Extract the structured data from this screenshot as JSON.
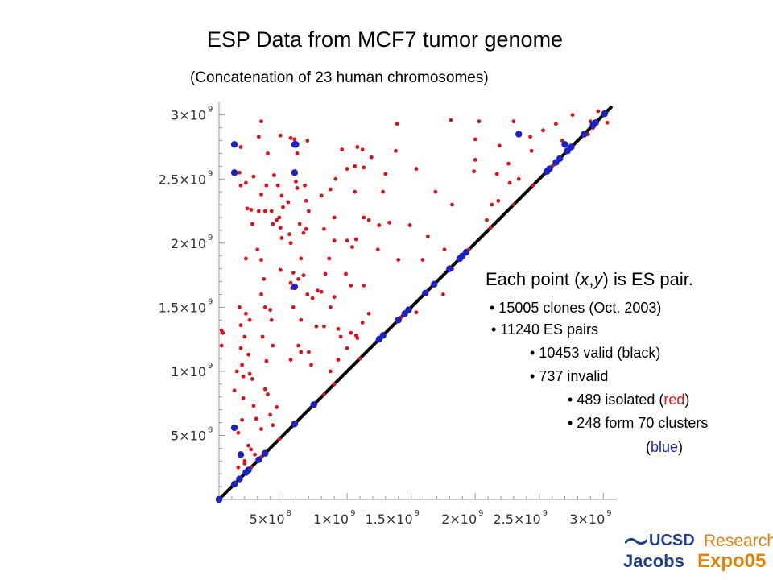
{
  "title": "ESP Data from MCF7 tumor genome",
  "subtitle": "(Concatenation of 23 human chromosomes)",
  "info": {
    "head_prefix": "Each point (",
    "head_x": "x",
    "head_comma": ",",
    "head_y": "y",
    "head_suffix": ") is ES pair.",
    "line1": "• 15005 clones (Oct. 2003)",
    "line2": "• 11240 ES pairs",
    "line3": "• 10453 valid (black)",
    "line4": "• 737 invalid",
    "line5_a": "• 489 isolated (",
    "line5_b": "red",
    "line5_c": ")",
    "line6": "• 248 form 70 clusters",
    "line7_a": "(",
    "line7_b": "blue",
    "line7_c": ")"
  },
  "logo": {
    "ucsd": "UCSD",
    "research": "Research",
    "jacobs": "Jacobs",
    "expo": "Expo05"
  },
  "colors": {
    "valid": "#000000",
    "isolated": "#e0101a",
    "cluster": "#1a22c8",
    "axis": "#999999"
  },
  "chart_data": {
    "type": "scatter",
    "x_ticks": [
      {
        "value": 500000000,
        "mantissa": "5×10",
        "exp": "8"
      },
      {
        "value": 1000000000,
        "mantissa": "1×10",
        "exp": "9"
      },
      {
        "value": 1500000000,
        "mantissa": "1.5×10",
        "exp": "9"
      },
      {
        "value": 2000000000,
        "mantissa": "2×10",
        "exp": "9"
      },
      {
        "value": 2500000000,
        "mantissa": "2.5×10",
        "exp": "9"
      },
      {
        "value": 3000000000,
        "mantissa": "3×10",
        "exp": "9"
      }
    ],
    "y_ticks": [
      {
        "value": 500000000,
        "mantissa": "5×10",
        "exp": "8"
      },
      {
        "value": 1000000000,
        "mantissa": "1×10",
        "exp": "9"
      },
      {
        "value": 1500000000,
        "mantissa": "1.5×10",
        "exp": "9"
      },
      {
        "value": 2000000000,
        "mantissa": "2×10",
        "exp": "9"
      },
      {
        "value": 2500000000,
        "mantissa": "2.5×10",
        "exp": "9"
      },
      {
        "value": 3000000000,
        "mantissa": "3×10",
        "exp": "9"
      }
    ],
    "xlim": [
      0,
      3080000000
    ],
    "ylim": [
      0,
      3080000000
    ],
    "valid_line": {
      "name": "valid (black)",
      "from": [
        0,
        0
      ],
      "to": [
        3060000000,
        3060000000
      ]
    },
    "series": [
      {
        "name": "isolated (red)",
        "points": [
          [
            20000000,
            1320000000
          ],
          [
            30000000,
            1300000000
          ],
          [
            20000000,
            1200000000
          ],
          [
            150000000,
            250000000
          ],
          [
            200000000,
            280000000
          ],
          [
            160000000,
            1500000000
          ],
          [
            180000000,
            1050000000
          ],
          [
            140000000,
            1000000000
          ],
          [
            120000000,
            850000000
          ],
          [
            180000000,
            620000000
          ],
          [
            150000000,
            520000000
          ],
          [
            230000000,
            420000000
          ],
          [
            200000000,
            300000000
          ],
          [
            170000000,
            2750000000
          ],
          [
            160000000,
            2550000000
          ],
          [
            170000000,
            2450000000
          ],
          [
            210000000,
            2470000000
          ],
          [
            220000000,
            2270000000
          ],
          [
            250000000,
            2260000000
          ],
          [
            260000000,
            2150000000
          ],
          [
            210000000,
            1880000000
          ],
          [
            200000000,
            1270000000
          ],
          [
            170000000,
            1180000000
          ],
          [
            210000000,
            1450000000
          ],
          [
            240000000,
            1400000000
          ],
          [
            170000000,
            1360000000
          ],
          [
            230000000,
            1130000000
          ],
          [
            190000000,
            960000000
          ],
          [
            240000000,
            980000000
          ],
          [
            260000000,
            940000000
          ],
          [
            190000000,
            790000000
          ],
          [
            270000000,
            730000000
          ],
          [
            290000000,
            630000000
          ],
          [
            250000000,
            390000000
          ],
          [
            280000000,
            350000000
          ],
          [
            270000000,
            2520000000
          ],
          [
            310000000,
            2830000000
          ],
          [
            330000000,
            2950000000
          ],
          [
            380000000,
            2700000000
          ],
          [
            370000000,
            2450000000
          ],
          [
            330000000,
            2380000000
          ],
          [
            310000000,
            2250000000
          ],
          [
            360000000,
            2250000000
          ],
          [
            410000000,
            2250000000
          ],
          [
            420000000,
            2150000000
          ],
          [
            300000000,
            1950000000
          ],
          [
            330000000,
            1870000000
          ],
          [
            350000000,
            1720000000
          ],
          [
            330000000,
            1600000000
          ],
          [
            360000000,
            1500000000
          ],
          [
            400000000,
            1480000000
          ],
          [
            410000000,
            1400000000
          ],
          [
            420000000,
            1200000000
          ],
          [
            340000000,
            1270000000
          ],
          [
            370000000,
            1080000000
          ],
          [
            360000000,
            860000000
          ],
          [
            380000000,
            820000000
          ],
          [
            400000000,
            660000000
          ],
          [
            330000000,
            550000000
          ],
          [
            420000000,
            580000000
          ],
          [
            430000000,
            2530000000
          ],
          [
            460000000,
            2450000000
          ],
          [
            490000000,
            2370000000
          ],
          [
            450000000,
            2180000000
          ],
          [
            470000000,
            2200000000
          ],
          [
            480000000,
            2120000000
          ],
          [
            490000000,
            2040000000
          ],
          [
            500000000,
            2280000000
          ],
          [
            540000000,
            2320000000
          ],
          [
            550000000,
            2070000000
          ],
          [
            560000000,
            2000000000
          ],
          [
            600000000,
            2480000000
          ],
          [
            610000000,
            2430000000
          ],
          [
            480000000,
            1790000000
          ],
          [
            560000000,
            1690000000
          ],
          [
            570000000,
            1650000000
          ],
          [
            580000000,
            1770000000
          ],
          [
            620000000,
            1720000000
          ],
          [
            660000000,
            1750000000
          ],
          [
            580000000,
            1500000000
          ],
          [
            640000000,
            1400000000
          ],
          [
            620000000,
            1200000000
          ],
          [
            560000000,
            1090000000
          ],
          [
            640000000,
            1150000000
          ],
          [
            450000000,
            720000000
          ],
          [
            480000000,
            2840000000
          ],
          [
            560000000,
            2820000000
          ],
          [
            590000000,
            2810000000
          ],
          [
            610000000,
            2700000000
          ],
          [
            690000000,
            2800000000
          ],
          [
            670000000,
            2450000000
          ],
          [
            680000000,
            2330000000
          ],
          [
            700000000,
            2250000000
          ],
          [
            630000000,
            2150000000
          ],
          [
            680000000,
            2110000000
          ],
          [
            660000000,
            2080000000
          ],
          [
            640000000,
            1880000000
          ],
          [
            690000000,
            1600000000
          ],
          [
            730000000,
            1570000000
          ],
          [
            770000000,
            1630000000
          ],
          [
            760000000,
            1350000000
          ],
          [
            700000000,
            1150000000
          ],
          [
            720000000,
            1050000000
          ],
          [
            910000000,
            2500000000
          ],
          [
            800000000,
            2370000000
          ],
          [
            870000000,
            2420000000
          ],
          [
            900000000,
            2200000000
          ],
          [
            820000000,
            2110000000
          ],
          [
            900000000,
            2020000000
          ],
          [
            860000000,
            1880000000
          ],
          [
            830000000,
            1760000000
          ],
          [
            800000000,
            1620000000
          ],
          [
            900000000,
            1580000000
          ],
          [
            870000000,
            1500000000
          ],
          [
            820000000,
            1350000000
          ],
          [
            930000000,
            1330000000
          ],
          [
            950000000,
            1270000000
          ],
          [
            870000000,
            1000000000
          ],
          [
            930000000,
            1090000000
          ],
          [
            1000000000,
            1180000000
          ],
          [
            1030000000,
            1300000000
          ],
          [
            1000000000,
            2020000000
          ],
          [
            1070000000,
            2030000000
          ],
          [
            1040000000,
            1970000000
          ],
          [
            990000000,
            1760000000
          ],
          [
            1060000000,
            2400000000
          ],
          [
            1060000000,
            2600000000
          ],
          [
            1000000000,
            2580000000
          ],
          [
            1130000000,
            2590000000
          ],
          [
            960000000,
            2730000000
          ],
          [
            1080000000,
            2750000000
          ],
          [
            1120000000,
            2730000000
          ],
          [
            1130000000,
            2200000000
          ],
          [
            1170000000,
            2180000000
          ],
          [
            1130000000,
            1670000000
          ],
          [
            1030000000,
            1670000000
          ],
          [
            1170000000,
            1450000000
          ],
          [
            1120000000,
            1380000000
          ],
          [
            1070000000,
            1280000000
          ],
          [
            1080000000,
            1260000000
          ],
          [
            1280000000,
            2400000000
          ],
          [
            1250000000,
            2140000000
          ],
          [
            1240000000,
            1950000000
          ],
          [
            1190000000,
            2670000000
          ],
          [
            1390000000,
            2930000000
          ],
          [
            1380000000,
            2720000000
          ],
          [
            1300000000,
            2540000000
          ],
          [
            1330000000,
            2160000000
          ],
          [
            1400000000,
            1870000000
          ],
          [
            1490000000,
            2140000000
          ],
          [
            1540000000,
            2580000000
          ],
          [
            1690000000,
            2400000000
          ],
          [
            1630000000,
            2050000000
          ],
          [
            1590000000,
            1870000000
          ],
          [
            1540000000,
            1460000000
          ],
          [
            1820000000,
            2300000000
          ],
          [
            1760000000,
            1950000000
          ],
          [
            1820000000,
            1800000000
          ],
          [
            1750000000,
            1600000000
          ],
          [
            1810000000,
            2960000000
          ],
          [
            2000000000,
            2810000000
          ],
          [
            1990000000,
            2560000000
          ],
          [
            2000000000,
            2650000000
          ],
          [
            2030000000,
            2950000000
          ],
          [
            2090000000,
            2180000000
          ],
          [
            2130000000,
            2300000000
          ],
          [
            2180000000,
            2330000000
          ],
          [
            2170000000,
            2540000000
          ],
          [
            2190000000,
            2760000000
          ],
          [
            2300000000,
            2950000000
          ],
          [
            2260000000,
            2620000000
          ],
          [
            2270000000,
            2470000000
          ],
          [
            2340000000,
            2500000000
          ],
          [
            2430000000,
            2830000000
          ],
          [
            2530000000,
            2880000000
          ],
          [
            2440000000,
            2720000000
          ],
          [
            2630000000,
            2930000000
          ],
          [
            2680000000,
            2800000000
          ],
          [
            2760000000,
            3000000000
          ],
          [
            2900000000,
            2950000000
          ],
          [
            2960000000,
            3030000000
          ],
          [
            2920000000,
            2900000000
          ],
          [
            3030000000,
            2940000000
          ],
          [
            2880000000,
            2850000000
          ],
          [
            2750000000,
            2750000000
          ],
          [
            2610000000,
            2610000000
          ],
          [
            2450000000,
            2450000000
          ],
          [
            2300000000,
            2300000000
          ],
          [
            2120000000,
            2120000000
          ],
          [
            1950000000,
            1950000000
          ],
          [
            1800000000,
            1800000000
          ],
          [
            1620000000,
            1620000000
          ],
          [
            1420000000,
            1420000000
          ],
          [
            1280000000,
            1280000000
          ],
          [
            1100000000,
            1100000000
          ],
          [
            900000000,
            900000000
          ],
          [
            820000000,
            820000000
          ],
          [
            750000000,
            750000000
          ],
          [
            600000000,
            600000000
          ],
          [
            470000000,
            470000000
          ],
          [
            330000000,
            330000000
          ],
          [
            250000000,
            250000000
          ],
          [
            130000000,
            130000000
          ]
        ]
      },
      {
        "name": "clusters (blue)",
        "points": [
          [
            0,
            0
          ],
          [
            120000000,
            120000000
          ],
          [
            160000000,
            160000000
          ],
          [
            210000000,
            210000000
          ],
          [
            230000000,
            230000000
          ],
          [
            310000000,
            310000000
          ],
          [
            360000000,
            360000000
          ],
          [
            590000000,
            590000000
          ],
          [
            740000000,
            740000000
          ],
          [
            1250000000,
            1250000000
          ],
          [
            1280000000,
            1280000000
          ],
          [
            1400000000,
            1400000000
          ],
          [
            1450000000,
            1450000000
          ],
          [
            1480000000,
            1480000000
          ],
          [
            1610000000,
            1610000000
          ],
          [
            1680000000,
            1680000000
          ],
          [
            1800000000,
            1800000000
          ],
          [
            1880000000,
            1880000000
          ],
          [
            1900000000,
            1900000000
          ],
          [
            1930000000,
            1930000000
          ],
          [
            2560000000,
            2560000000
          ],
          [
            2580000000,
            2580000000
          ],
          [
            2630000000,
            2630000000
          ],
          [
            2660000000,
            2660000000
          ],
          [
            2720000000,
            2720000000
          ],
          [
            2750000000,
            2750000000
          ],
          [
            2850000000,
            2850000000
          ],
          [
            2920000000,
            2920000000
          ],
          [
            2940000000,
            2940000000
          ],
          [
            3010000000,
            3010000000
          ],
          [
            120000000,
            2770000000
          ],
          [
            120000000,
            2550000000
          ],
          [
            590000000,
            2770000000
          ],
          [
            600000000,
            2770000000
          ],
          [
            590000000,
            2550000000
          ],
          [
            590000000,
            1660000000
          ],
          [
            120000000,
            560000000
          ],
          [
            170000000,
            350000000
          ],
          [
            2340000000,
            2850000000
          ],
          [
            2700000000,
            2770000000
          ]
        ]
      }
    ]
  }
}
